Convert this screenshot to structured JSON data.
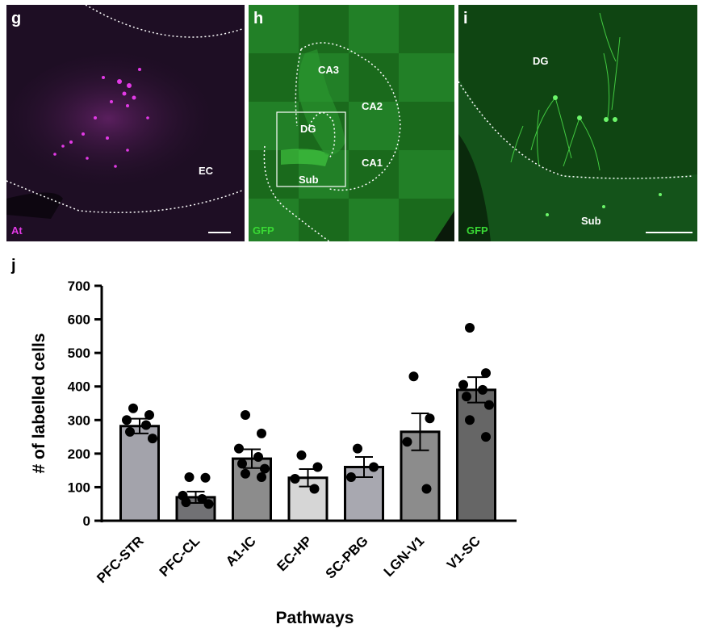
{
  "panels": {
    "g": {
      "letter": "g",
      "stain": "At",
      "stain_color": "#e23ae6",
      "background": "#1e0e24",
      "regions": [
        "EC"
      ]
    },
    "h": {
      "letter": "h",
      "stain": "GFP",
      "stain_color": "#39d934",
      "background": "#1a6a1c",
      "regions": [
        "CA3",
        "CA2",
        "DG",
        "CA1",
        "Sub"
      ]
    },
    "i": {
      "letter": "i",
      "stain": "GFP",
      "stain_color": "#39d934",
      "background": "#0f4512",
      "regions": [
        "DG",
        "Sub"
      ]
    },
    "j": {
      "letter": "j"
    }
  },
  "chart_data": {
    "type": "bar",
    "title": "",
    "xlabel": "Pathways",
    "ylabel": "# of labelled cells",
    "ylim": [
      0,
      700
    ],
    "yticks": [
      0,
      100,
      200,
      300,
      400,
      500,
      600,
      700
    ],
    "categories": [
      "PFC-STR",
      "PFC-CL",
      "A1-IC",
      "EC-HP",
      "SC-PBG",
      "LGN-V1",
      "V1-SC"
    ],
    "values": [
      282,
      70,
      185,
      128,
      160,
      265,
      390
    ],
    "sem": [
      22,
      17,
      28,
      26,
      30,
      55,
      38
    ],
    "bar_colors": [
      "#a3a3ab",
      "#717174",
      "#8c8c8c",
      "#d6d6d6",
      "#a8a8b0",
      "#8c8c8c",
      "#666666"
    ],
    "points": [
      [
        335,
        315,
        300,
        285,
        265,
        245
      ],
      [
        130,
        128,
        75,
        65,
        55,
        50
      ],
      [
        315,
        260,
        215,
        190,
        170,
        155,
        140,
        130
      ],
      [
        195,
        160,
        125,
        95
      ],
      [
        215,
        160,
        130
      ],
      [
        430,
        305,
        235,
        95
      ],
      [
        575,
        440,
        405,
        390,
        370,
        345,
        300,
        250
      ]
    ],
    "grid": false,
    "legend": "none"
  }
}
